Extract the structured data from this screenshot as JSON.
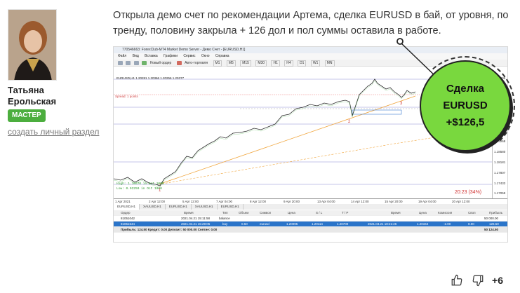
{
  "author": {
    "name": "Татьяна Ерольская",
    "badge": "МАСТЕР",
    "create_link": "создать личный раздел"
  },
  "post": {
    "text": "Открыла демо счет по рекомендации Артема, сделка EURUSD в бай, от уровня, по тренду, половину закрыла + 126 дол и пол суммы оставила в работе."
  },
  "terminal": {
    "window_title": "770546663: ForexClub-MT4 Market Demo Server - Демо Счет - [EURUSD,H1]",
    "menu": [
      "Файл",
      "Вид",
      "Вставка",
      "Графики",
      "Сервис",
      "Окно",
      "Справка"
    ],
    "toolbar": {
      "new_order": "Новый ордер",
      "auto_trading": "Авто-торговля"
    },
    "timeframes": [
      "M1",
      "M5",
      "M15",
      "M30",
      "H1",
      "H4",
      "D1",
      "W1",
      "MN"
    ],
    "chart_info": "EURUSD,H1 1.20281 1.20366 1.20256 1.20377",
    "chart_labels": {
      "spread": "Spread: 1 points",
      "high": "High: 1.16570 in Oct 1000",
      "low": "Low: 0.02250 in Oct 1000",
      "wave_1": "1",
      "wave_2": "2",
      "wave_3": "3",
      "timer": "20:23 (34%)"
    },
    "prices": [
      "1.21405",
      "1.21142",
      "1.20768",
      "1.20390",
      "1.20016",
      "1.19642",
      "1.19268",
      "1.18580",
      "1.18181",
      "1.17807",
      "1.17433",
      "1.17059"
    ],
    "dates": [
      "1 Apr 2021",
      "2 Apr 12:00",
      "5 Apr 12:00",
      "7 Apr 04:00",
      "8 Apr 12:00",
      "9 Apr 20:00",
      "13 Apr 04:00",
      "14 Apr 12:00",
      "15 Apr 20:00",
      "19 Apr 04:00",
      "20 Apr 12:00"
    ],
    "tabs": [
      "EURUSD,H1",
      "XAUUSD,H1",
      "EURUSD,H1",
      "XAUUSD,H1",
      "EURUSD,H1"
    ],
    "table": {
      "headers": [
        "Ордер",
        "Время",
        "Тип",
        "Объем",
        "Символ",
        "Цена",
        "S / L",
        "T / P",
        "Время",
        "Цена",
        "Комиссия",
        "Своп",
        "Прибыль"
      ],
      "rows": [
        [
          "81051042",
          "2021.04.21 15:11:58",
          "balance",
          "",
          "",
          "",
          "",
          "",
          "",
          "",
          "",
          "",
          "50 000.00"
        ],
        [
          "81051544",
          "2021.04.21 15:29:05",
          "buy",
          "0.50",
          "eurusd",
          "1.20095",
          "1.20114",
          "1.20700",
          "2021.04.21 18:21:26",
          "1.20344",
          "-2.00",
          "0.00",
          "126.50"
        ]
      ],
      "summary": "Прибыль: 124.50  Кредит: 0.00  Депозит: 50 000.00  Снятие: 0.00",
      "summary_total": "50 124.50"
    }
  },
  "callout": {
    "line1": "Сделка",
    "line2": "EURUSD",
    "line3": "+$126,5",
    "color": "#79d83e"
  },
  "reactions": {
    "like_icon": "thumbs-up-icon",
    "dislike_icon": "thumbs-down-icon",
    "score": "+6"
  }
}
